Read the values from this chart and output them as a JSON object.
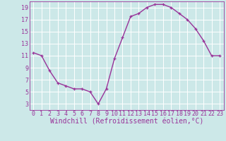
{
  "x": [
    0,
    1,
    2,
    3,
    4,
    5,
    6,
    7,
    8,
    9,
    10,
    11,
    12,
    13,
    14,
    15,
    16,
    17,
    18,
    19,
    20,
    21,
    22,
    23
  ],
  "y": [
    11.5,
    11.0,
    8.5,
    6.5,
    6.0,
    5.5,
    5.5,
    5.0,
    3.0,
    5.5,
    10.5,
    14.0,
    17.5,
    18.0,
    19.0,
    19.5,
    19.5,
    19.0,
    18.0,
    17.0,
    15.5,
    13.5,
    11.0,
    11.0
  ],
  "xlabel": "Windchill (Refroidissement éolien,°C)",
  "ylim": [
    2,
    20
  ],
  "xlim": [
    -0.5,
    23.5
  ],
  "yticks": [
    3,
    5,
    7,
    9,
    11,
    13,
    15,
    17,
    19
  ],
  "xticks": [
    0,
    1,
    2,
    3,
    4,
    5,
    6,
    7,
    8,
    9,
    10,
    11,
    12,
    13,
    14,
    15,
    16,
    17,
    18,
    19,
    20,
    21,
    22,
    23
  ],
  "line_color": "#993399",
  "marker": "+",
  "bg_color": "#cce8e8",
  "grid_color": "#ffffff",
  "tick_label_fontsize": 6.0,
  "xlabel_fontsize": 7.0
}
